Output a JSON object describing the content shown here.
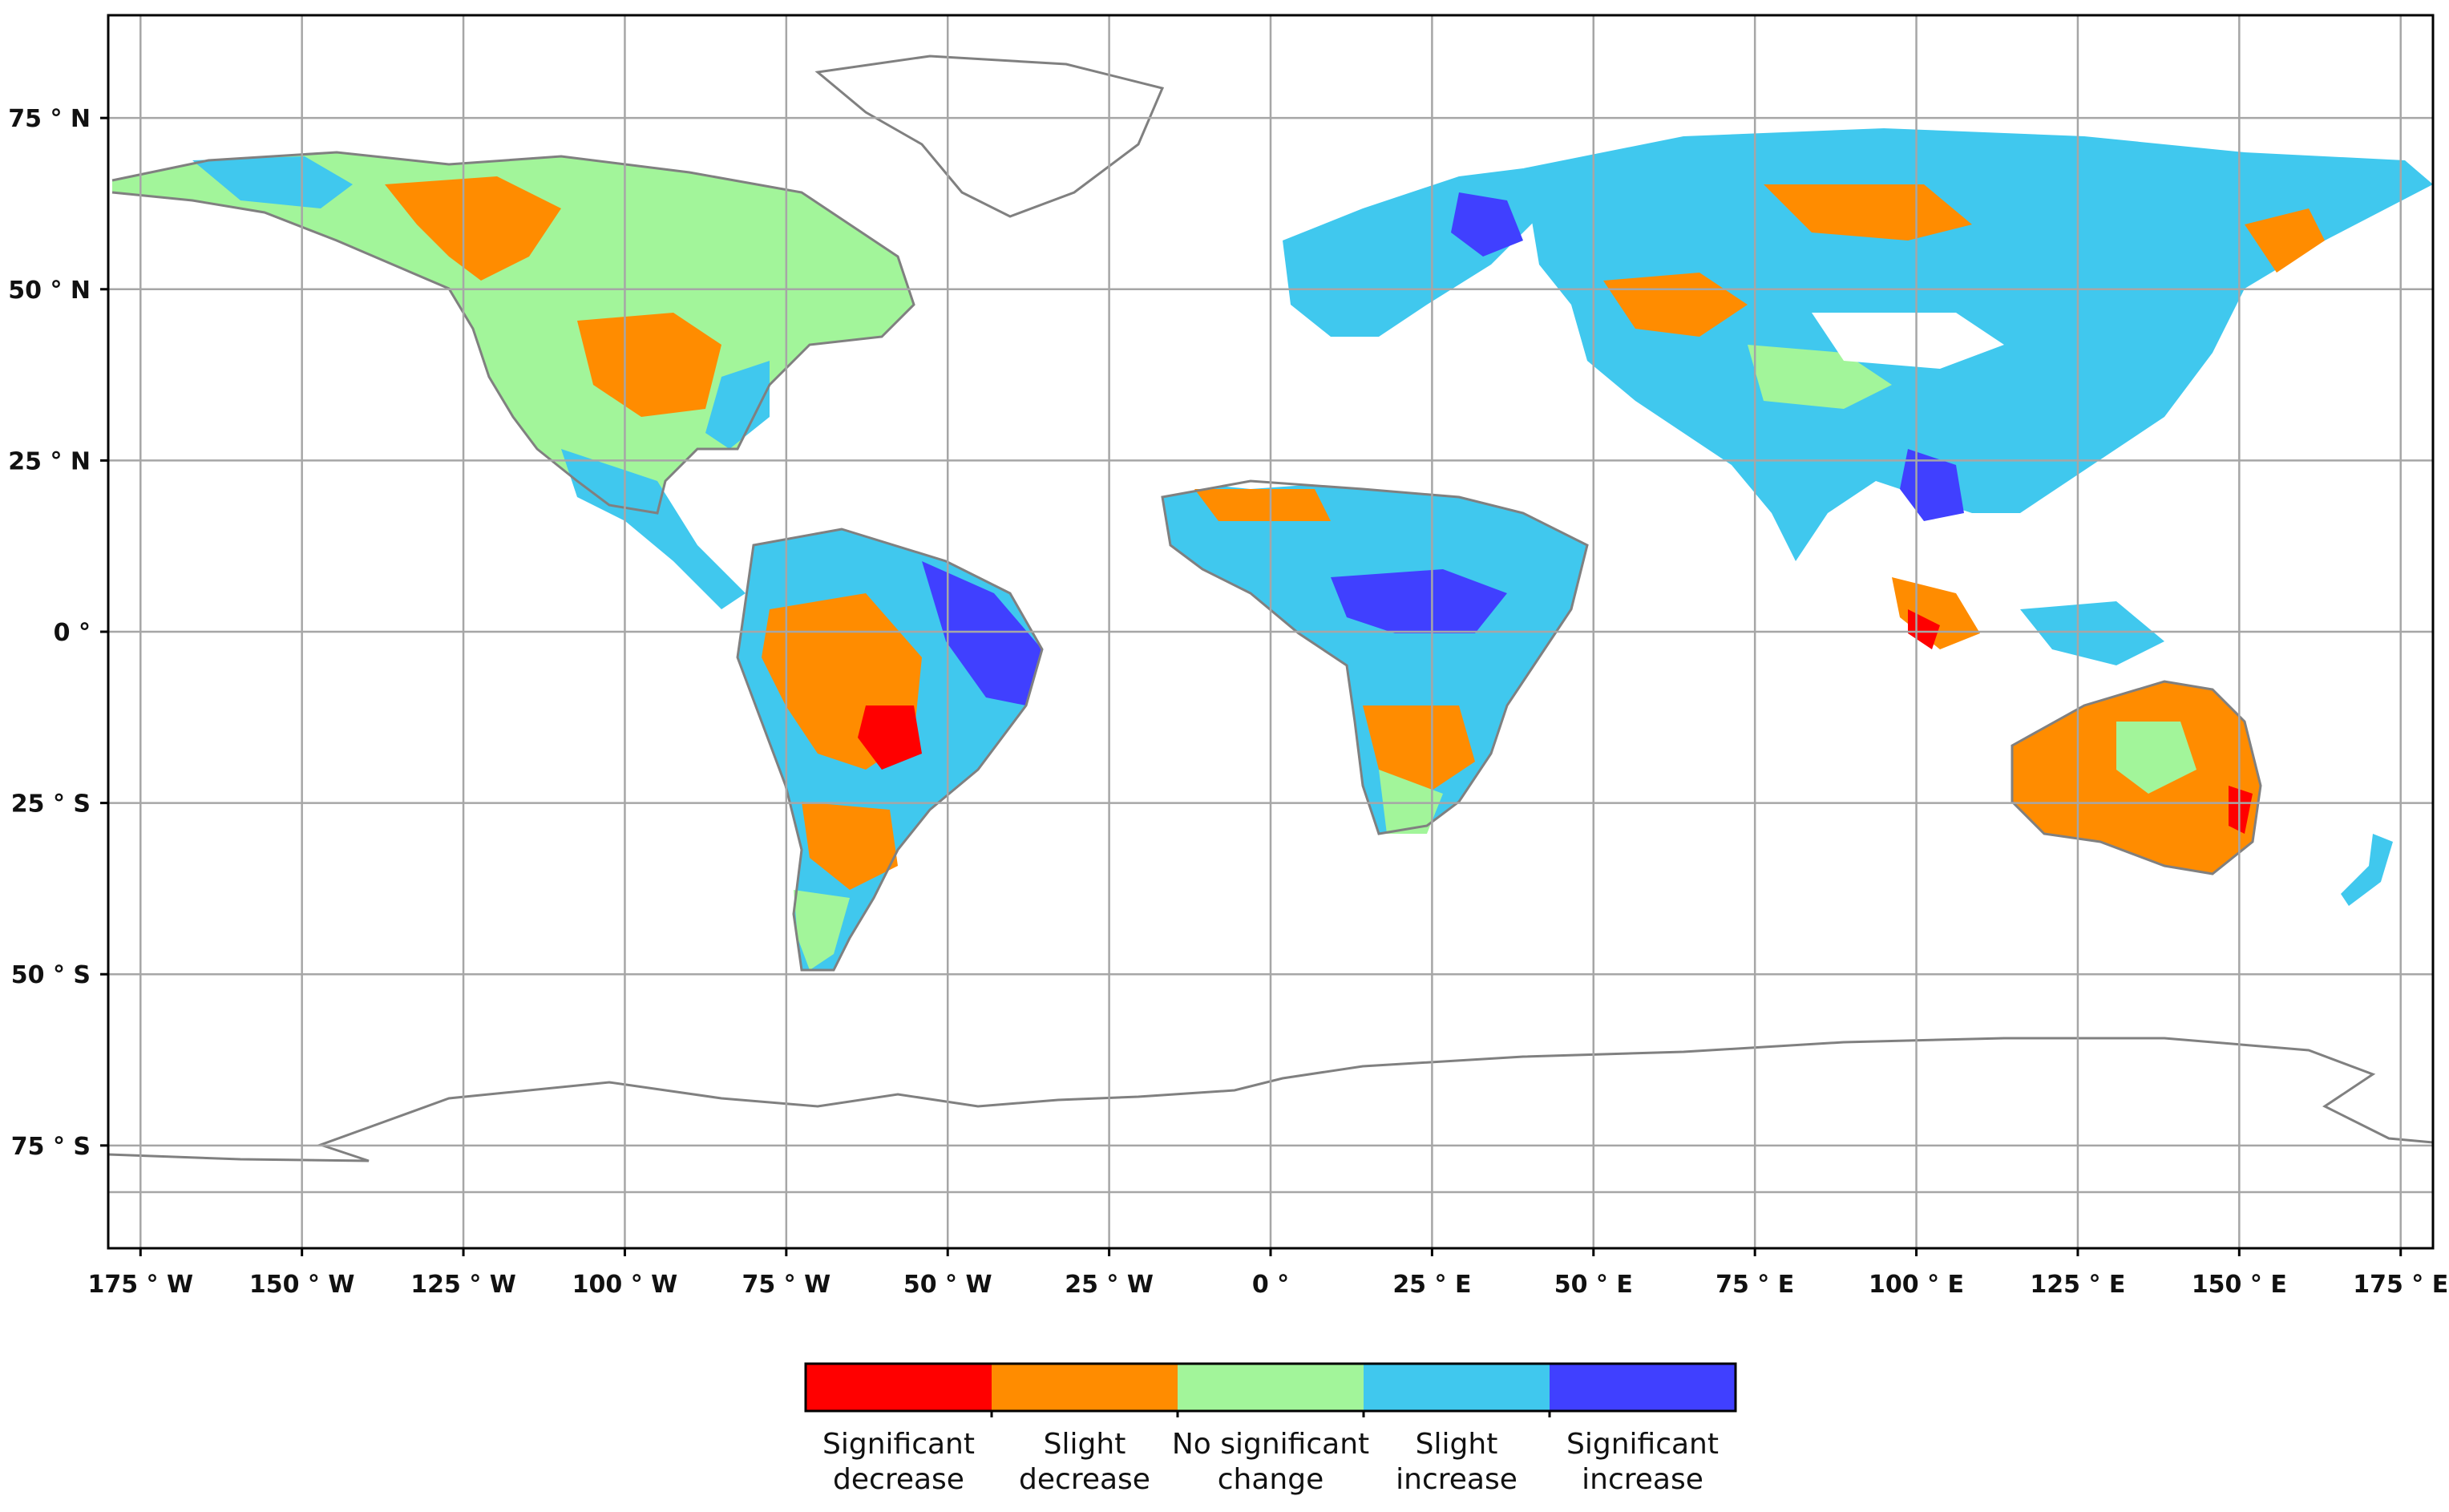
{
  "map": {
    "projection": "equirectangular",
    "lon_range": [
      -180,
      180
    ],
    "lat_range": [
      -90,
      90
    ],
    "graticule_lon": [
      -175,
      -150,
      -125,
      -100,
      -75,
      -50,
      -25,
      0,
      25,
      50,
      75,
      100,
      125,
      150,
      175
    ],
    "graticule_lat": [
      75,
      50,
      25,
      0,
      -25,
      -50,
      -75
    ],
    "x_tick_labels": [
      "175 ° W",
      "150 ° W",
      "125 ° W",
      "100 ° W",
      "75 ° W",
      "50 ° W",
      "25 ° W",
      "0 °",
      "25 ° E",
      "50 ° E",
      "75 ° E",
      "100 ° E",
      "125 ° E",
      "150 ° E",
      "175 ° E"
    ],
    "y_tick_labels": [
      "75 ° N",
      "50 ° N",
      "25 ° N",
      "0 °",
      "25 ° S",
      "50 ° S",
      "75 ° S"
    ],
    "colors": {
      "grid": "#a6a6a6",
      "coastline": "#808080",
      "border": "#9a9a9a",
      "frame": "#000000"
    }
  },
  "legend": {
    "classes": [
      {
        "line1": "Significant",
        "line2": "decrease",
        "color": "#ff0000"
      },
      {
        "line1": "Slight",
        "line2": "decrease",
        "color": "#ff8c00"
      },
      {
        "line1": "No significant",
        "line2": "change",
        "color": "#a2f59a"
      },
      {
        "line1": "Slight",
        "line2": "increase",
        "color": "#40c8ee"
      },
      {
        "line1": "Significant",
        "line2": "increase",
        "color": "#4040ff"
      }
    ]
  }
}
